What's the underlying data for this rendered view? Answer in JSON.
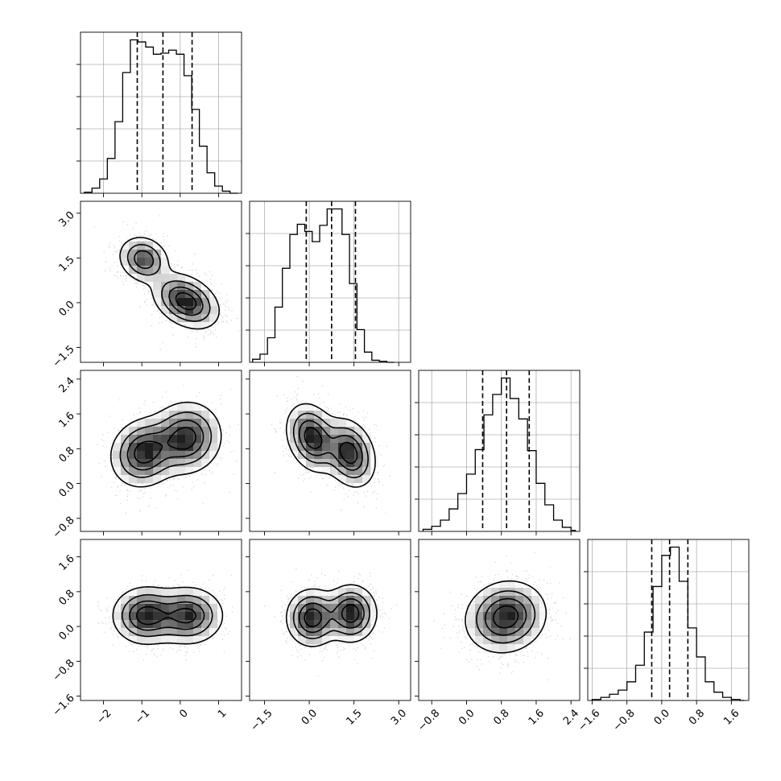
{
  "chart_data": {
    "type": "corner",
    "dimensions": 4,
    "xlabel": "",
    "ylabel": "",
    "axes": [
      {
        "range": [
          -2.6,
          1.6
        ],
        "ticks": [
          -2,
          -1,
          0,
          1
        ],
        "tick_labels": [
          "−2",
          "−1",
          "0",
          "1"
        ]
      },
      {
        "range": [
          -2.0,
          3.4
        ],
        "ticks": [
          -1.5,
          0.0,
          1.5,
          3.0
        ],
        "tick_labels": [
          "−1.5",
          "0.0",
          "1.5",
          "3.0"
        ]
      },
      {
        "range": [
          -1.1,
          2.6
        ],
        "ticks": [
          -0.8,
          0.0,
          0.8,
          1.6,
          2.4
        ],
        "tick_labels": [
          "−0.8",
          "0.0",
          "0.8",
          "1.6",
          "2.4"
        ]
      },
      {
        "range": [
          -1.7,
          2.0
        ],
        "ticks": [
          -1.6,
          -0.8,
          0.0,
          0.8,
          1.6
        ],
        "tick_labels": [
          "−1.6",
          "−0.8",
          "0.0",
          "0.8",
          "1.6"
        ]
      }
    ],
    "histograms": [
      {
        "bins": [
          -2.5,
          -2.3,
          -2.1,
          -1.9,
          -1.7,
          -1.5,
          -1.3,
          -1.1,
          -0.9,
          -0.7,
          -0.5,
          -0.3,
          -0.1,
          0.1,
          0.3,
          0.5,
          0.7,
          0.9,
          1.1,
          1.3,
          1.5
        ],
        "counts": [
          1,
          5,
          14,
          34,
          70,
          118,
          150,
          148,
          143,
          136,
          137,
          140,
          136,
          115,
          82,
          46,
          20,
          7,
          2,
          0
        ],
        "quantiles": [
          -1.12,
          -0.45,
          0.31
        ]
      },
      {
        "bins": [
          -1.9,
          -1.65,
          -1.4,
          -1.15,
          -0.9,
          -0.65,
          -0.4,
          -0.15,
          0.1,
          0.35,
          0.6,
          0.85,
          1.1,
          1.35,
          1.6,
          1.85,
          2.1,
          2.35,
          2.6,
          2.85
        ],
        "counts": [
          3,
          8,
          24,
          54,
          92,
          125,
          135,
          128,
          118,
          134,
          150,
          150,
          125,
          77,
          32,
          10,
          2,
          1,
          0
        ],
        "quantiles": [
          -0.1,
          0.75,
          1.55
        ]
      },
      {
        "bins": [
          -1.0,
          -0.8,
          -0.6,
          -0.4,
          -0.2,
          0.0,
          0.2,
          0.4,
          0.6,
          0.8,
          1.0,
          1.2,
          1.4,
          1.6,
          1.8,
          2.0,
          2.2,
          2.4,
          2.5
        ],
        "counts": [
          2,
          5,
          11,
          22,
          37,
          56,
          80,
          114,
          134,
          150,
          130,
          110,
          79,
          47,
          26,
          11,
          4,
          1
        ],
        "quantiles": [
          0.37,
          0.92,
          1.44
        ]
      },
      {
        "bins": [
          -1.6,
          -1.4,
          -1.2,
          -1.0,
          -0.8,
          -0.6,
          -0.4,
          -0.2,
          0.0,
          0.2,
          0.4,
          0.6,
          0.8,
          1.0,
          1.2,
          1.4,
          1.6,
          1.8,
          1.9
        ],
        "counts": [
          1,
          3,
          6,
          10,
          18,
          34,
          66,
          110,
          140,
          148,
          115,
          70,
          42,
          18,
          8,
          3,
          1,
          0
        ],
        "quantiles": [
          -0.23,
          0.18,
          0.6
        ]
      }
    ],
    "pairs": [
      {
        "row": 1,
        "col": 0,
        "modes": [
          {
            "x": -0.95,
            "y": 1.45,
            "w": 0.7,
            "sx": 0.32,
            "sy": 0.38,
            "rho": -0.15
          },
          {
            "x": 0.15,
            "y": 0.05,
            "w": 0.9,
            "sx": 0.42,
            "sy": 0.45,
            "rho": -0.35
          }
        ]
      },
      {
        "row": 2,
        "col": 0,
        "modes": [
          {
            "x": -0.95,
            "y": 0.7,
            "w": 1.0,
            "sx": 0.42,
            "sy": 0.38,
            "rho": 0.1
          },
          {
            "x": 0.15,
            "y": 1.05,
            "w": 1.0,
            "sx": 0.45,
            "sy": 0.4,
            "rho": 0.05
          }
        ]
      },
      {
        "row": 2,
        "col": 1,
        "modes": [
          {
            "x": 0.1,
            "y": 1.05,
            "w": 1.0,
            "sx": 0.42,
            "sy": 0.38,
            "rho": -0.25
          },
          {
            "x": 1.35,
            "y": 0.7,
            "w": 1.0,
            "sx": 0.42,
            "sy": 0.38,
            "rho": -0.25
          }
        ]
      },
      {
        "row": 3,
        "col": 0,
        "modes": [
          {
            "x": -0.9,
            "y": 0.25,
            "w": 1.0,
            "sx": 0.42,
            "sy": 0.32,
            "rho": 0.0
          },
          {
            "x": 0.2,
            "y": 0.25,
            "w": 0.95,
            "sx": 0.45,
            "sy": 0.32,
            "rho": 0.0
          }
        ]
      },
      {
        "row": 3,
        "col": 1,
        "modes": [
          {
            "x": 0.1,
            "y": 0.2,
            "w": 1.0,
            "sx": 0.42,
            "sy": 0.32,
            "rho": 0.0
          },
          {
            "x": 1.4,
            "y": 0.3,
            "w": 1.0,
            "sx": 0.42,
            "sy": 0.32,
            "rho": 0.0
          }
        ]
      },
      {
        "row": 3,
        "col": 2,
        "modes": [
          {
            "x": 0.9,
            "y": 0.22,
            "w": 1.0,
            "sx": 0.45,
            "sy": 0.4,
            "rho": 0.1
          }
        ]
      }
    ],
    "grid": true,
    "contour_levels": [
      0.12,
      0.33,
      0.58,
      0.82
    ],
    "colors": {
      "line": "#000000",
      "grid": "#b0b0b0",
      "points": "#808080",
      "density_dark": "#000000"
    }
  }
}
